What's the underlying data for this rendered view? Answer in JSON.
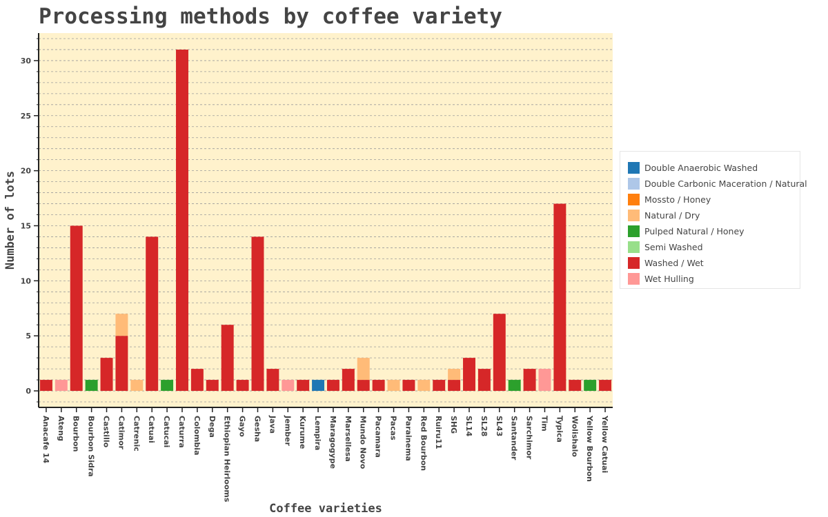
{
  "chart_data": {
    "type": "bar",
    "stacked": true,
    "title": "Processing methods by coffee variety",
    "xlabel": "Coffee varieties",
    "ylabel": "Number of lots",
    "ylim": [
      -1.5,
      32.5
    ],
    "yticks": [
      0,
      5,
      10,
      15,
      20,
      25,
      30
    ],
    "grid": true,
    "legend_position": "right",
    "background_color": "#fff2cc",
    "categories": [
      "Anacafe 14",
      "Ateng",
      "Bourbon",
      "Bourbon Sidra",
      "Castillo",
      "Catimor",
      "Catrenic",
      "Catuai",
      "Catucai",
      "Caturra",
      "Colombia",
      "Dega",
      "Ethiopian Heirlooms",
      "Gayo",
      "Gesha",
      "Java",
      "Jember",
      "Kurume",
      "Lempira",
      "Maragogype",
      "Marsellesa",
      "Mundo Novo",
      "Pacamara",
      "Pacas",
      "Parainema",
      "Red Bourbon",
      "Ruiru11",
      "SHG",
      "SL14",
      "SL28",
      "SL43",
      "Santander",
      "Sarchimor",
      "Tim",
      "Typica",
      "Wolishalo",
      "Yellow Bourbon",
      "Yellow Catuai"
    ],
    "series": [
      {
        "name": "Double Anaerobic Washed",
        "color": "#1f77b4",
        "values": [
          0,
          0,
          0,
          0,
          0,
          0,
          0,
          0,
          0,
          0,
          0,
          0,
          0,
          0,
          0,
          0,
          0,
          0,
          1,
          0,
          0,
          0,
          0,
          0,
          0,
          0,
          0,
          0,
          0,
          0,
          0,
          0,
          0,
          0,
          0,
          0,
          0,
          0
        ]
      },
      {
        "name": "Double Carbonic Maceration / Natural",
        "color": "#aec7e8",
        "values": [
          0,
          0,
          0,
          0,
          0,
          0,
          0,
          0,
          0,
          0,
          0,
          0,
          0,
          0,
          0,
          0,
          0,
          0,
          0,
          0,
          0,
          0,
          0,
          0,
          0,
          0,
          0,
          0,
          0,
          0,
          0,
          0,
          0,
          0,
          0,
          0,
          0,
          0
        ]
      },
      {
        "name": "Mossto / Honey",
        "color": "#ff7f0e",
        "values": [
          0,
          0,
          0,
          0,
          0,
          0,
          0,
          0,
          0,
          0,
          0,
          0,
          0,
          0,
          0,
          0,
          0,
          0,
          0,
          0,
          0,
          0,
          0,
          0,
          0,
          0,
          0,
          0,
          0,
          0,
          0,
          0,
          0,
          0,
          0,
          0,
          0,
          0
        ]
      },
      {
        "name": "Washed / Wet",
        "color": "#d62728",
        "values": [
          1,
          0,
          15,
          0,
          3,
          5,
          0,
          14,
          0,
          31,
          2,
          1,
          6,
          1,
          14,
          2,
          0,
          1,
          0,
          1,
          2,
          1,
          1,
          0,
          1,
          0,
          1,
          1,
          3,
          2,
          7,
          0,
          2,
          0,
          17,
          1,
          0,
          1
        ]
      },
      {
        "name": "Natural / Dry",
        "color": "#ffbb78",
        "values": [
          0,
          0,
          0,
          0,
          0,
          2,
          1,
          0,
          0,
          0,
          0,
          0,
          0,
          0,
          0,
          0,
          0,
          0,
          0,
          0,
          0,
          2,
          0,
          1,
          0,
          1,
          0,
          1,
          0,
          0,
          0,
          0,
          0,
          0,
          0,
          0,
          0,
          0
        ]
      },
      {
        "name": "Pulped Natural / Honey",
        "color": "#2ca02c",
        "values": [
          0,
          0,
          0,
          1,
          0,
          0,
          0,
          0,
          1,
          0,
          0,
          0,
          0,
          0,
          0,
          0,
          0,
          0,
          0,
          0,
          0,
          0,
          0,
          0,
          0,
          0,
          0,
          0,
          0,
          0,
          0,
          1,
          0,
          0,
          0,
          0,
          1,
          0
        ]
      },
      {
        "name": "Semi Washed",
        "color": "#98df8a",
        "values": [
          0,
          0,
          0,
          0,
          0,
          0,
          0,
          0,
          0,
          0,
          0,
          0,
          0,
          0,
          0,
          0,
          0,
          0,
          0,
          0,
          0,
          0,
          0,
          0,
          0,
          0,
          0,
          0,
          0,
          0,
          0,
          0,
          0,
          0,
          0,
          0,
          0,
          0
        ]
      },
      {
        "name": "Wet Hulling",
        "color": "#ff9896",
        "values": [
          0,
          1,
          0,
          0,
          0,
          0,
          0,
          0,
          0,
          0,
          0,
          0,
          0,
          0,
          0,
          0,
          1,
          0,
          0,
          0,
          0,
          0,
          0,
          0,
          0,
          0,
          0,
          0,
          0,
          0,
          0,
          0,
          0,
          2,
          0,
          0,
          0,
          0
        ]
      }
    ],
    "legend_order": [
      "Double Anaerobic Washed",
      "Double Carbonic Maceration / Natural",
      "Mossto / Honey",
      "Natural / Dry",
      "Pulped Natural / Honey",
      "Semi Washed",
      "Washed / Wet",
      "Wet Hulling"
    ]
  }
}
